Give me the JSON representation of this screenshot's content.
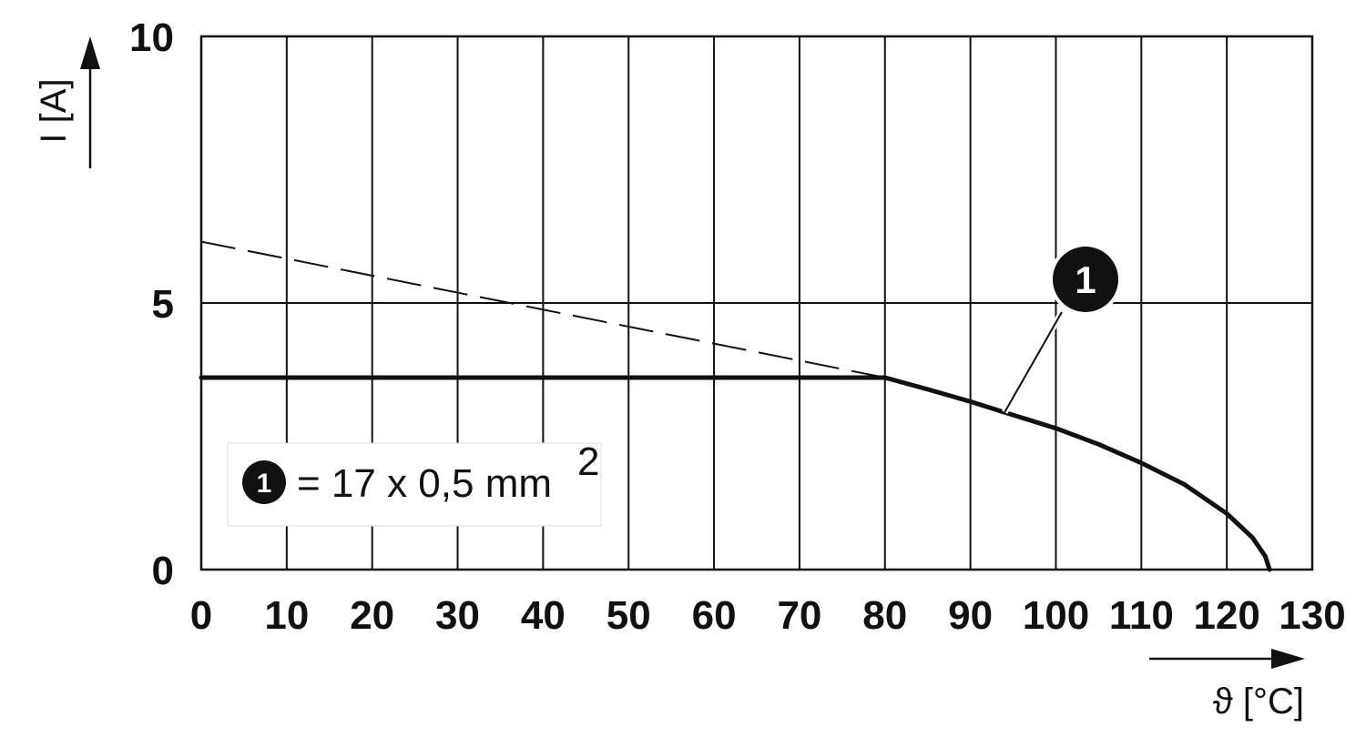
{
  "chart_data": {
    "type": "line",
    "xlabel": "ϑ [°C]",
    "ylabel": "I [A]",
    "xlim": [
      0,
      130
    ],
    "ylim": [
      0,
      10
    ],
    "x_ticks": [
      "0",
      "10",
      "20",
      "30",
      "40",
      "50",
      "60",
      "70",
      "80",
      "90",
      "100",
      "110",
      "120",
      "130"
    ],
    "y_ticks": [
      "0",
      "5",
      "10"
    ],
    "grid": true,
    "series": [
      {
        "name": "1",
        "style": "solid",
        "color": "#111111",
        "x": [
          0,
          80,
          85,
          90,
          95,
          100,
          105,
          110,
          115,
          120,
          123,
          124.5,
          125
        ],
        "y": [
          3.6,
          3.6,
          3.38,
          3.15,
          2.9,
          2.65,
          2.35,
          2.0,
          1.6,
          1.05,
          0.6,
          0.25,
          0
        ]
      },
      {
        "style": "dashed",
        "color": "#111111",
        "x": [
          0,
          80
        ],
        "y": [
          6.15,
          3.6
        ]
      }
    ],
    "callout": {
      "label": "1",
      "target_x": 94,
      "target_y": 2.95
    },
    "legend": {
      "placement": "bottom-left",
      "badge": "1",
      "text": "= 17 x 0,5 mm",
      "superscript": "2"
    }
  }
}
